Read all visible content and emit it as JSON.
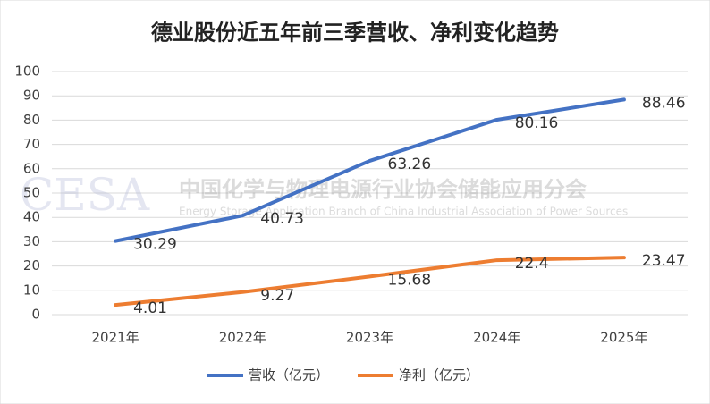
{
  "chart_data": {
    "type": "line",
    "title": "德业股份近五年前三季营收、净利变化趋势",
    "categories": [
      "2021年",
      "2022年",
      "2023年",
      "2024年",
      "2025年"
    ],
    "series": [
      {
        "name": "营收（亿元）",
        "color": "#4472c4",
        "values": [
          30.29,
          40.73,
          63.26,
          80.16,
          88.46
        ]
      },
      {
        "name": "净利（亿元）",
        "color": "#ed7d31",
        "values": [
          4.01,
          9.27,
          15.68,
          22.4,
          23.47
        ]
      }
    ],
    "ylim": [
      0,
      100
    ],
    "yticks": [
      0,
      10,
      20,
      30,
      40,
      50,
      60,
      70,
      80,
      90,
      100
    ],
    "grid": true,
    "legend": "bottom",
    "watermark": {
      "logo": "CESA",
      "name": "中国化学与物理电源行业协会储能应用分会",
      "english": "Energy Storage Application Branch of China Industrial Association of Power Sources"
    }
  }
}
